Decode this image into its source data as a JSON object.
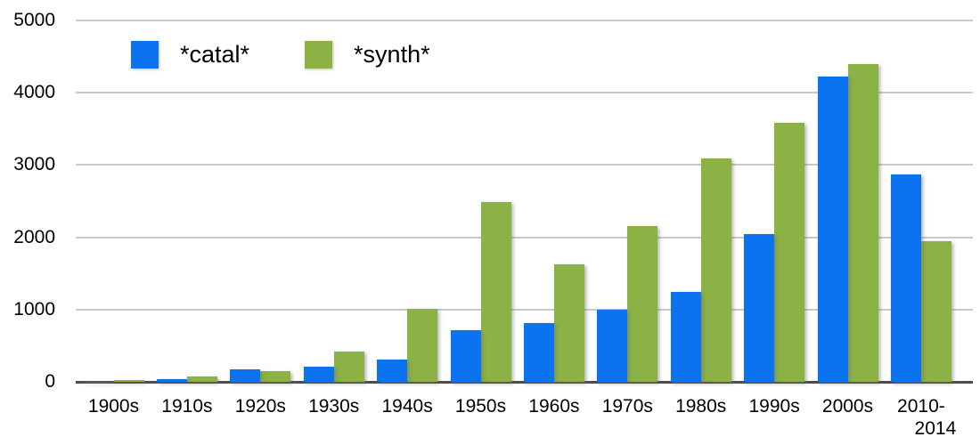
{
  "chart_data": {
    "type": "bar",
    "title": "",
    "xlabel": "",
    "ylabel": "",
    "categories": [
      "1900s",
      "1910s",
      "1920s",
      "1930s",
      "1940s",
      "1950s",
      "1960s",
      "1970s",
      "1980s",
      "1990s",
      "2000s",
      "2010-\n2014"
    ],
    "series": [
      {
        "name": "*catal*",
        "color": "#0b73f0",
        "values": [
          5,
          35,
          170,
          210,
          310,
          720,
          810,
          1000,
          1250,
          2050,
          4230,
          2870
        ]
      },
      {
        "name": "*synth*",
        "color": "#8cb245",
        "values": [
          20,
          80,
          150,
          420,
          1010,
          2490,
          1620,
          2150,
          3090,
          3590,
          4400,
          1950
        ]
      }
    ],
    "ylim": [
      0,
      5000
    ],
    "yticks": [
      "0",
      "1000",
      "2000",
      "3000",
      "4000",
      "5000"
    ],
    "grid": true,
    "legend_position": "top-left"
  },
  "colors": {
    "gridline": "#c9c9c9",
    "axis_line": "#4d4d4d",
    "text": "#000000",
    "background": "#ffffff"
  }
}
